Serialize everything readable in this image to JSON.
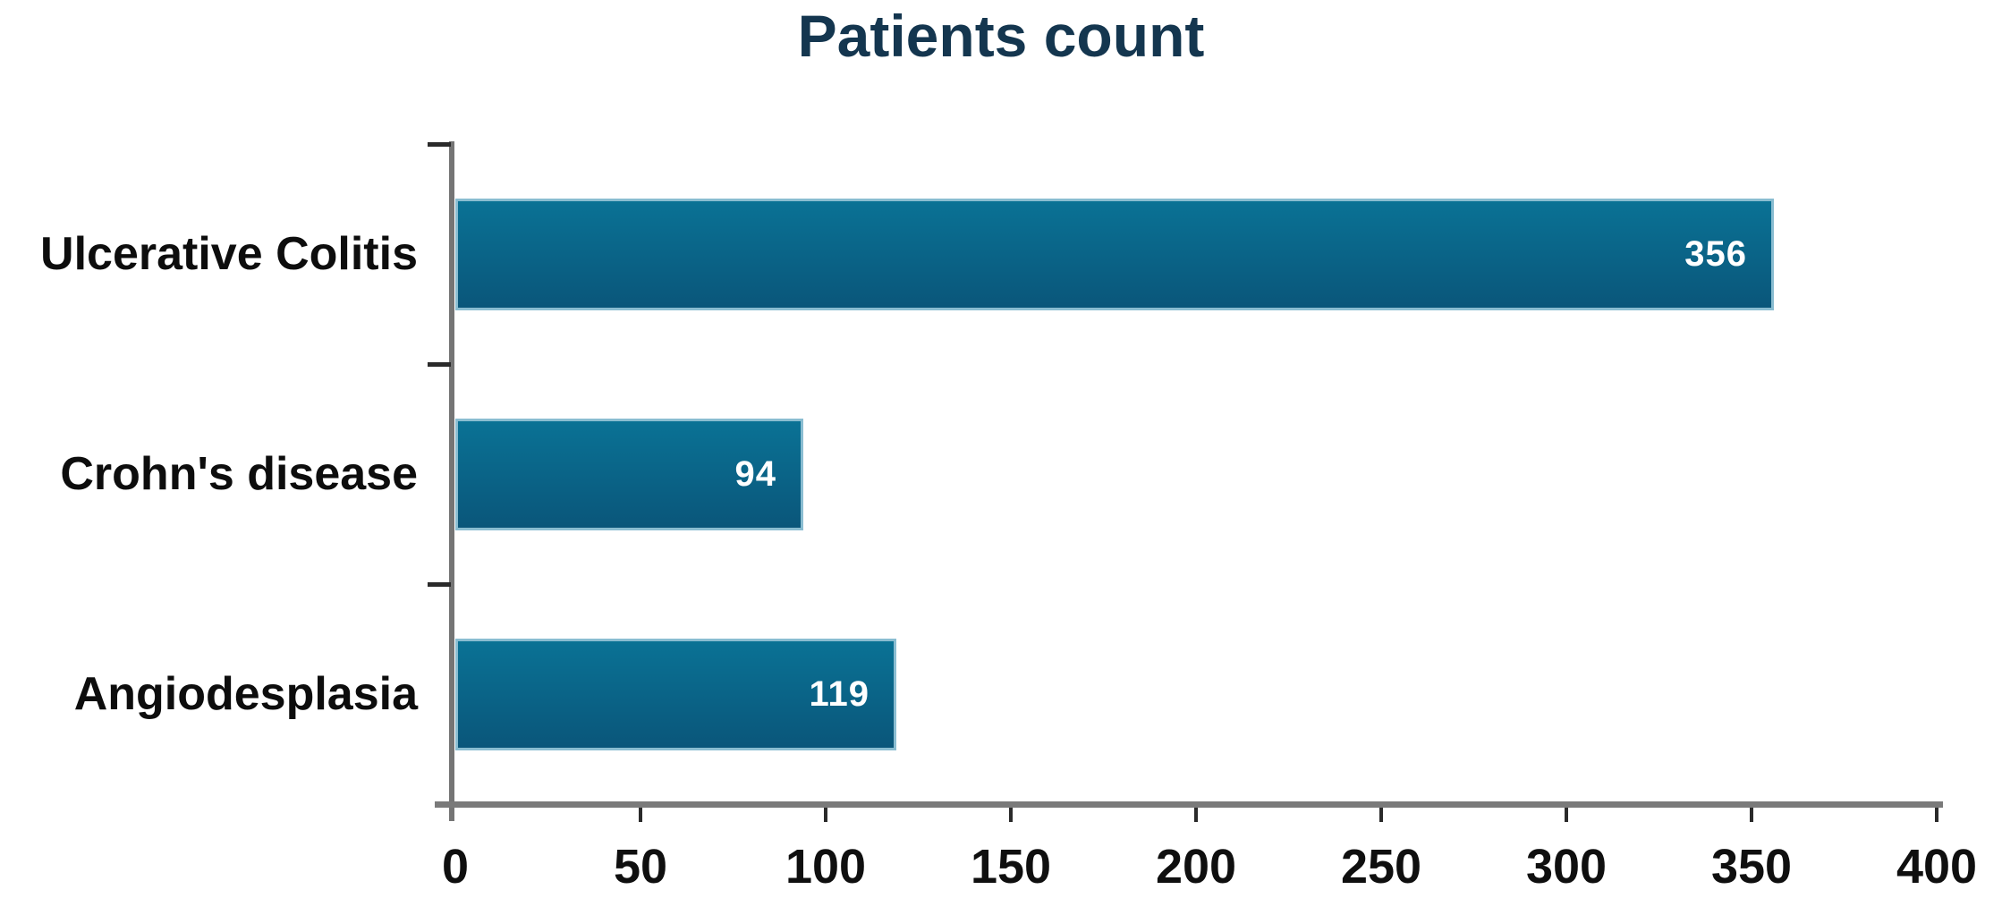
{
  "chart_data": {
    "type": "bar",
    "orientation": "horizontal",
    "title": "Patients count",
    "categories": [
      "Ulcerative Colitis",
      "Crohn's disease",
      "Angiodesplasia"
    ],
    "values": [
      356,
      94,
      119
    ],
    "value_labels": [
      "356",
      "94",
      "119"
    ],
    "xlabel": "",
    "ylabel": "",
    "xlim": [
      0,
      400
    ],
    "xticks": [
      0,
      50,
      100,
      150,
      200,
      250,
      300,
      350,
      400
    ],
    "xtick_labels": [
      "0",
      "50",
      "100",
      "150",
      "200",
      "250",
      "300",
      "350",
      "400"
    ],
    "grid": false,
    "legend": false,
    "colors": {
      "bar_gradient_top": "#0A7295",
      "bar_gradient_bottom": "#0A567A",
      "bar_edge": "#8ABDD1",
      "title": "#14364F",
      "category_label": "#0D0D0D",
      "tick_label": "#0F0F0F",
      "axis_line": "#757575",
      "tick_mark": "#2A2A2A",
      "value_label": "#FFFFFF"
    }
  }
}
